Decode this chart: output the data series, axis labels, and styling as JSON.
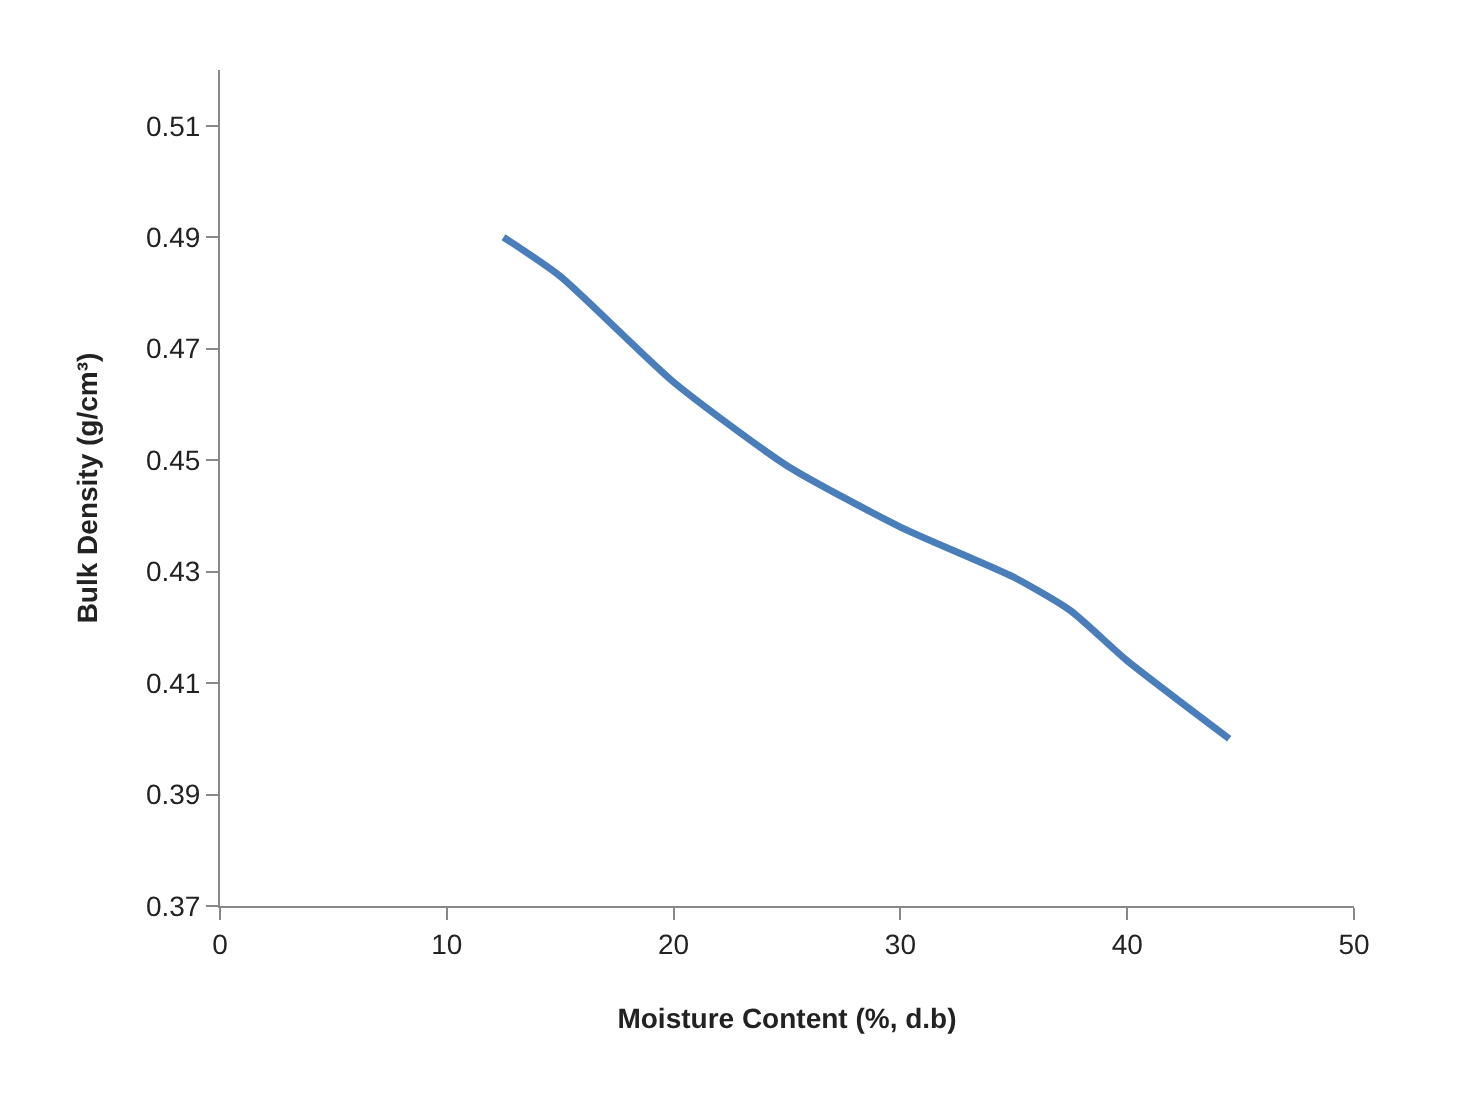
{
  "chart_data": {
    "type": "line",
    "xlabel": "Moisture Content (%, d.b)",
    "ylabel": "Bulk Density (g/cm³)",
    "series": [
      {
        "color": "#4a7ebb",
        "x": [
          12.5,
          15,
          20,
          25,
          30,
          35,
          37.5,
          40,
          44.5
        ],
        "values": [
          0.49,
          0.483,
          0.464,
          0.449,
          0.438,
          0.429,
          0.423,
          0.414,
          0.4
        ]
      }
    ],
    "xlim": [
      0,
      50
    ],
    "xticks": [
      0,
      10,
      20,
      30,
      40,
      50
    ],
    "ylim": [
      0.37,
      0.52
    ],
    "yticks": [
      0.37,
      0.39,
      0.41,
      0.43,
      0.45,
      0.47,
      0.49,
      0.51
    ],
    "marker": "none",
    "line_style": "solid"
  }
}
